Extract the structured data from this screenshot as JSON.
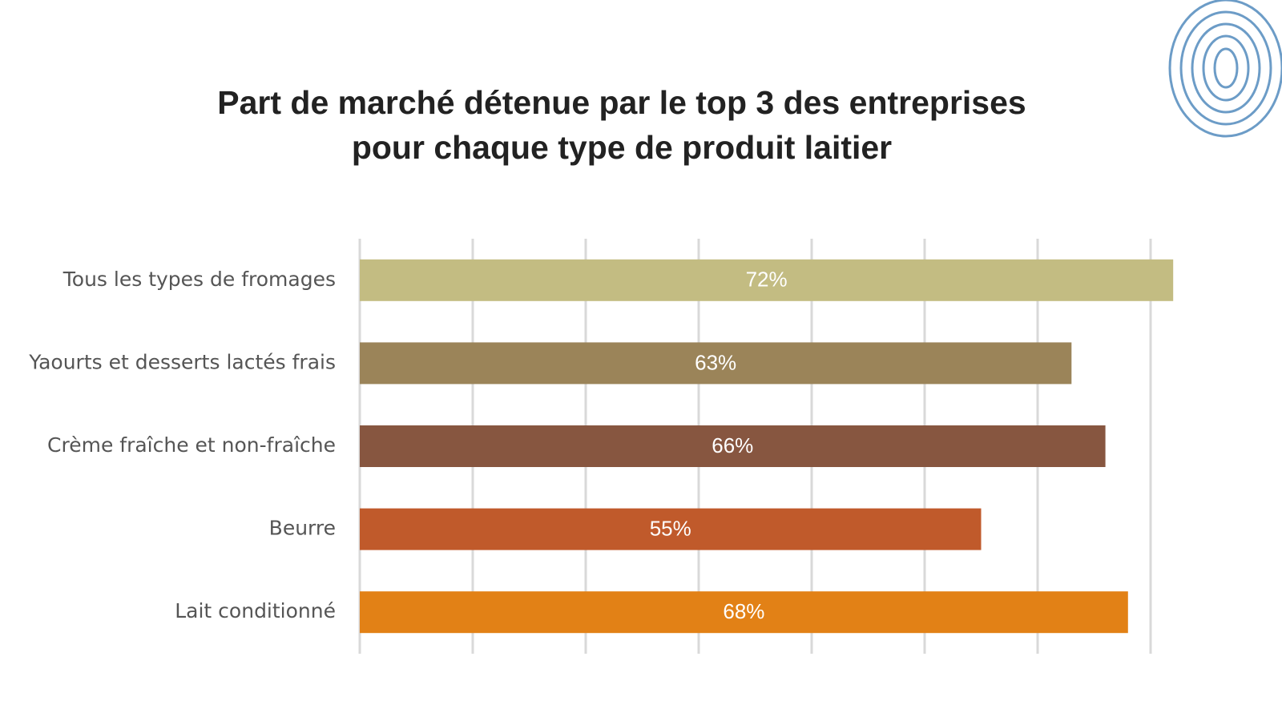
{
  "chart_data": {
    "type": "hbar",
    "title": [
      "Part de marché détenue par le top 3 des entreprises",
      "pour chaque type de produit laitier"
    ],
    "categories": [
      "Tous les types de fromages",
      "Yaourts et desserts lactés frais",
      "Crème fraîche et non-fraîche",
      "Beurre",
      "Lait conditionné"
    ],
    "values": [
      72,
      63,
      66,
      55,
      68
    ],
    "value_labels": [
      "72%",
      "63%",
      "66%",
      "55%",
      "68%"
    ],
    "colors": [
      "#c3bc82",
      "#9b8459",
      "#875640",
      "#c05a2b",
      "#e28116"
    ],
    "xlim": [
      0,
      80
    ],
    "xticks": [
      0,
      10,
      20,
      30,
      40,
      50,
      60,
      70
    ],
    "grid": true
  }
}
